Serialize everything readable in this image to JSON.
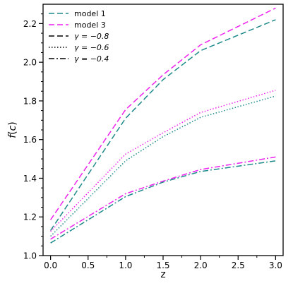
{
  "chart_data": {
    "type": "line",
    "title": "",
    "xlabel": "z",
    "ylabel": "f(c)",
    "xlim": [
      -0.1,
      3.1
    ],
    "ylim": [
      1.0,
      2.3
    ],
    "xticks": [
      "0.0",
      "0.5",
      "1.0",
      "1.5",
      "2.0",
      "2.5",
      "3.0"
    ],
    "yticks": [
      "1.0",
      "1.2",
      "1.4",
      "1.6",
      "1.8",
      "2.0",
      "2.2"
    ],
    "x": [
      0,
      1,
      1.5,
      2,
      3
    ],
    "grid": false,
    "legend_position": "upper left",
    "colors": {
      "model 1": "#1f8a8a",
      "model 3": "#ee22ee",
      "legend_style": "#000000"
    },
    "legend": [
      {
        "label": "model 1",
        "kind": "color",
        "key": "model 1"
      },
      {
        "label": "model 3",
        "kind": "color",
        "key": "model 3"
      },
      {
        "label": "γ = −0.8",
        "kind": "style",
        "dash": "dashed"
      },
      {
        "label": "γ = −0.6",
        "kind": "style",
        "dash": "dotted"
      },
      {
        "label": "γ = −0.4",
        "kind": "style",
        "dash": "dashdot"
      }
    ],
    "series": [
      {
        "model": "model 1",
        "gamma": "−0.8",
        "dash": "dashed",
        "values": [
          1.13,
          1.71,
          1.91,
          2.06,
          2.22
        ]
      },
      {
        "model": "model 3",
        "gamma": "−0.8",
        "dash": "dashed",
        "values": [
          1.185,
          1.755,
          1.935,
          2.09,
          2.28
        ]
      },
      {
        "model": "model 1",
        "gamma": "−0.6",
        "dash": "dotted",
        "values": [
          1.1,
          1.49,
          1.615,
          1.715,
          1.825
        ]
      },
      {
        "model": "model 3",
        "gamma": "−0.6",
        "dash": "dotted",
        "values": [
          1.125,
          1.525,
          1.635,
          1.74,
          1.855
        ]
      },
      {
        "model": "model 1",
        "gamma": "−0.4",
        "dash": "dashdot",
        "values": [
          1.065,
          1.305,
          1.38,
          1.435,
          1.49
        ]
      },
      {
        "model": "model 3",
        "gamma": "−0.4",
        "dash": "dashdot",
        "values": [
          1.085,
          1.32,
          1.385,
          1.445,
          1.51
        ]
      }
    ]
  }
}
